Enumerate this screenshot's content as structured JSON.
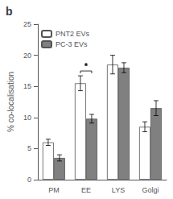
{
  "chart_data": {
    "type": "bar",
    "title": "b",
    "categories": [
      "PM",
      "EE",
      "LYS",
      "Golgi"
    ],
    "series": [
      {
        "name": "PNT2 EVs",
        "color": "#ffffff",
        "values": [
          6.0,
          15.5,
          18.5,
          8.5
        ],
        "errors": [
          0.5,
          1.2,
          1.5,
          0.8
        ]
      },
      {
        "name": "PC-3 EVs",
        "color": "#808080",
        "values": [
          3.5,
          9.8,
          18.0,
          11.5
        ],
        "errors": [
          0.5,
          0.7,
          0.8,
          1.2
        ]
      }
    ],
    "ylabel": "% co-localisation",
    "ylim": [
      0,
      25
    ],
    "yticks": [
      0,
      5,
      10,
      15,
      20,
      25
    ],
    "legend": "upper left",
    "grid": false,
    "annotations": [
      {
        "text": "*",
        "category": "EE"
      }
    ]
  }
}
